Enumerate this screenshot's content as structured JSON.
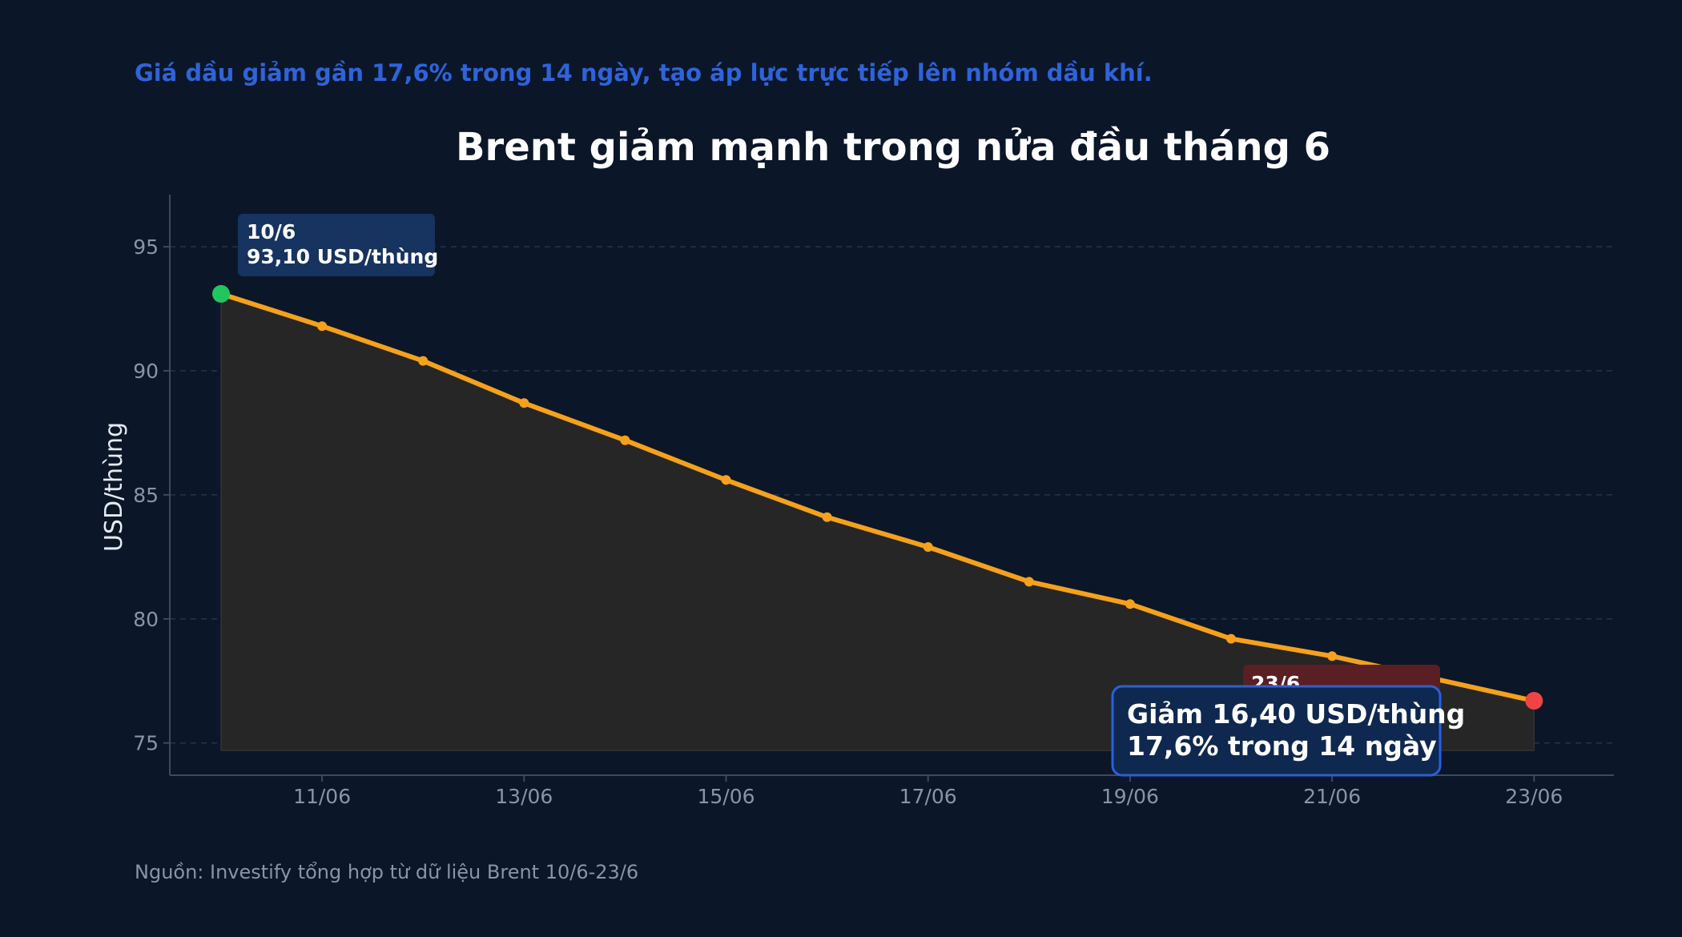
{
  "headline": "Giá dầu giảm gần 17,6% trong 14 ngày, tạo áp lực trực tiếp lên nhóm dầu khí.",
  "source": "Nguồn: Investify tổng hợp từ dữ liệu Brent 10/6-23/6",
  "colors": {
    "background": "#0b1628",
    "line": "#f5a11c",
    "start_marker": "#22c55e",
    "end_marker": "#ef4444",
    "headline": "#2f63d8",
    "start_label_bg": "#17335f",
    "end_label_bg": "#5a1f22",
    "summary_border": "#2b5fd9",
    "summary_bg": "#0f2850"
  },
  "chart_data": {
    "type": "line",
    "title": "Brent giảm mạnh trong nửa đầu tháng 6",
    "ylabel": "USD/thùng",
    "xlabel": "",
    "ylim": [
      73.7,
      97.1
    ],
    "yticks": [
      75,
      80,
      85,
      90,
      95
    ],
    "grid": "horizontal dashed",
    "area_fill": true,
    "x": [
      "10/06",
      "11/06",
      "12/06",
      "13/06",
      "14/06",
      "15/06",
      "16/06",
      "17/06",
      "18/06",
      "19/06",
      "20/06",
      "21/06",
      "22/06",
      "23/06"
    ],
    "xticks": [
      "11/06",
      "13/06",
      "15/06",
      "17/06",
      "19/06",
      "21/06",
      "23/06"
    ],
    "values": [
      93.1,
      91.8,
      90.4,
      88.7,
      87.2,
      85.6,
      84.1,
      82.9,
      81.5,
      80.6,
      79.2,
      78.5,
      77.6,
      76.7
    ],
    "annotations": {
      "start": {
        "line1": "10/6",
        "line2": "93,10 USD/thùng"
      },
      "end": {
        "line1": "23/6"
      },
      "summary": {
        "line1": "Giảm 16,40 USD/thùng",
        "line2": "17,6% trong 14 ngày"
      }
    }
  }
}
